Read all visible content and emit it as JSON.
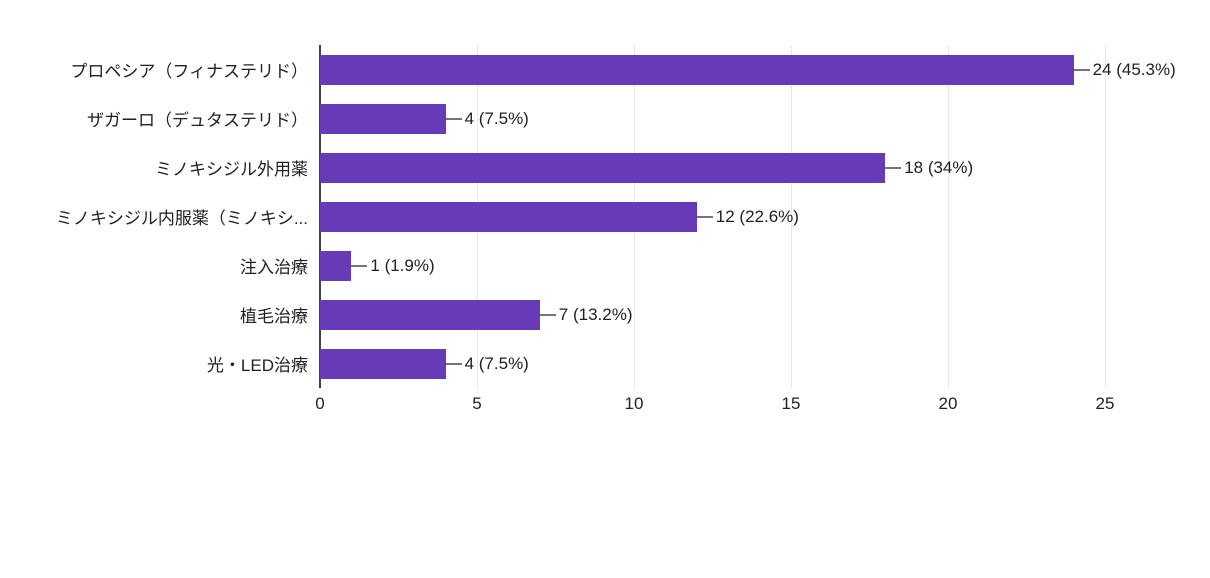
{
  "chart_data": {
    "type": "bar",
    "orientation": "horizontal",
    "title": "",
    "xlabel": "",
    "ylabel": "",
    "categories": [
      "プロペシア（フィナステリド）",
      "ザガーロ（デュタステリド）",
      "ミノキシジル外用薬",
      "ミノキシジル内服薬（ミノキシ...",
      "注入治療",
      "植毛治療",
      "光・LED治療"
    ],
    "values": [
      24,
      4,
      18,
      12,
      1,
      7,
      4
    ],
    "value_labels": [
      "24 (45.3%)",
      "4 (7.5%)",
      "18 (34%)",
      "12 (22.6%)",
      "1 (1.9%)",
      "7 (13.2%)",
      "4 (7.5%)"
    ],
    "x_ticks": [
      "0",
      "5",
      "10",
      "15",
      "20",
      "25"
    ],
    "xlim": [
      0,
      25
    ],
    "grid": true,
    "legend": "none",
    "bar_color": "#673ab7",
    "gridline_color": "#e8e8e8",
    "axis_line_color": "#424242",
    "label_color": "#212121"
  }
}
